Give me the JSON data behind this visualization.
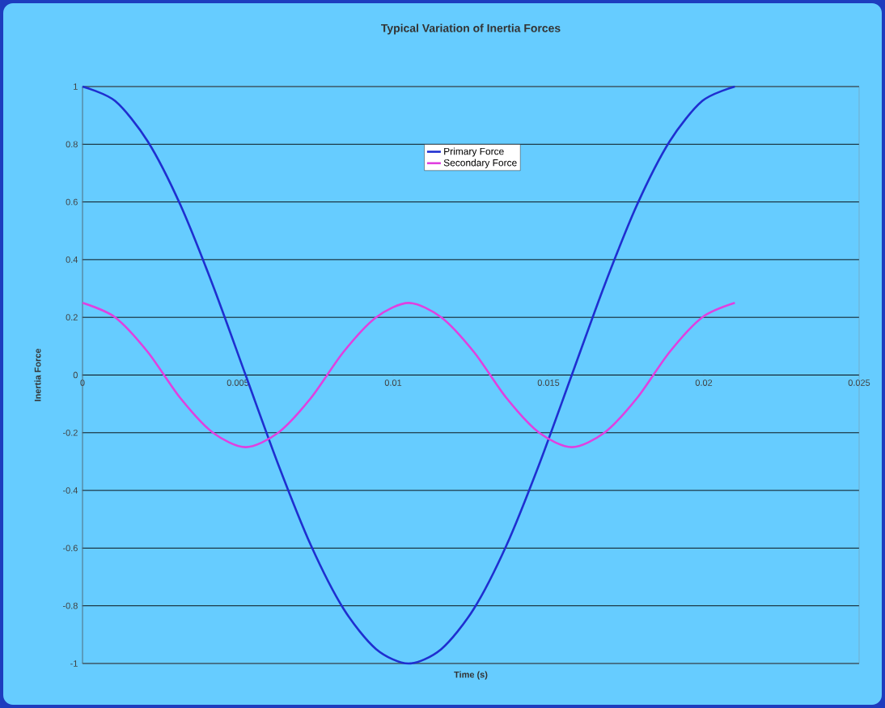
{
  "chart_data": {
    "type": "line",
    "title": "Typical Variation of Inertia Forces",
    "xlabel": "Time (s)",
    "ylabel": "Inertia Force",
    "x": [
      0,
      0.00105,
      0.0021,
      0.00315,
      0.0042,
      0.00525,
      0.0063,
      0.00735,
      0.0084,
      0.00945,
      0.0105,
      0.01155,
      0.0126,
      0.01365,
      0.0147,
      0.01575,
      0.0168,
      0.01785,
      0.0189,
      0.01995,
      0.021
    ],
    "series": [
      {
        "name": "Primary Force",
        "color": "#1f2fd0",
        "values": [
          1,
          0.95,
          0.81,
          0.59,
          0.31,
          0,
          -0.31,
          -0.59,
          -0.81,
          -0.95,
          -1,
          -0.95,
          -0.81,
          -0.59,
          -0.31,
          0,
          0.31,
          0.59,
          0.81,
          0.95,
          1
        ]
      },
      {
        "name": "Secondary Force",
        "color": "#e040e0",
        "values": [
          0.25,
          0.2,
          0.08,
          -0.08,
          -0.2,
          -0.25,
          -0.2,
          -0.08,
          0.08,
          0.2,
          0.25,
          0.2,
          0.08,
          -0.08,
          -0.2,
          -0.25,
          -0.2,
          -0.08,
          0.08,
          0.2,
          0.25
        ]
      }
    ],
    "xlim": [
      0,
      0.025
    ],
    "xticks": [
      0,
      0.005,
      0.01,
      0.015,
      0.02,
      0.025
    ],
    "ylim": [
      -1,
      1
    ],
    "yticks": [
      -1,
      -0.8,
      -0.6,
      -0.4,
      -0.2,
      0,
      0.2,
      0.4,
      0.6,
      0.8,
      1
    ],
    "grid": "y",
    "legend": "top",
    "marker": "none",
    "line_style": "solid"
  }
}
